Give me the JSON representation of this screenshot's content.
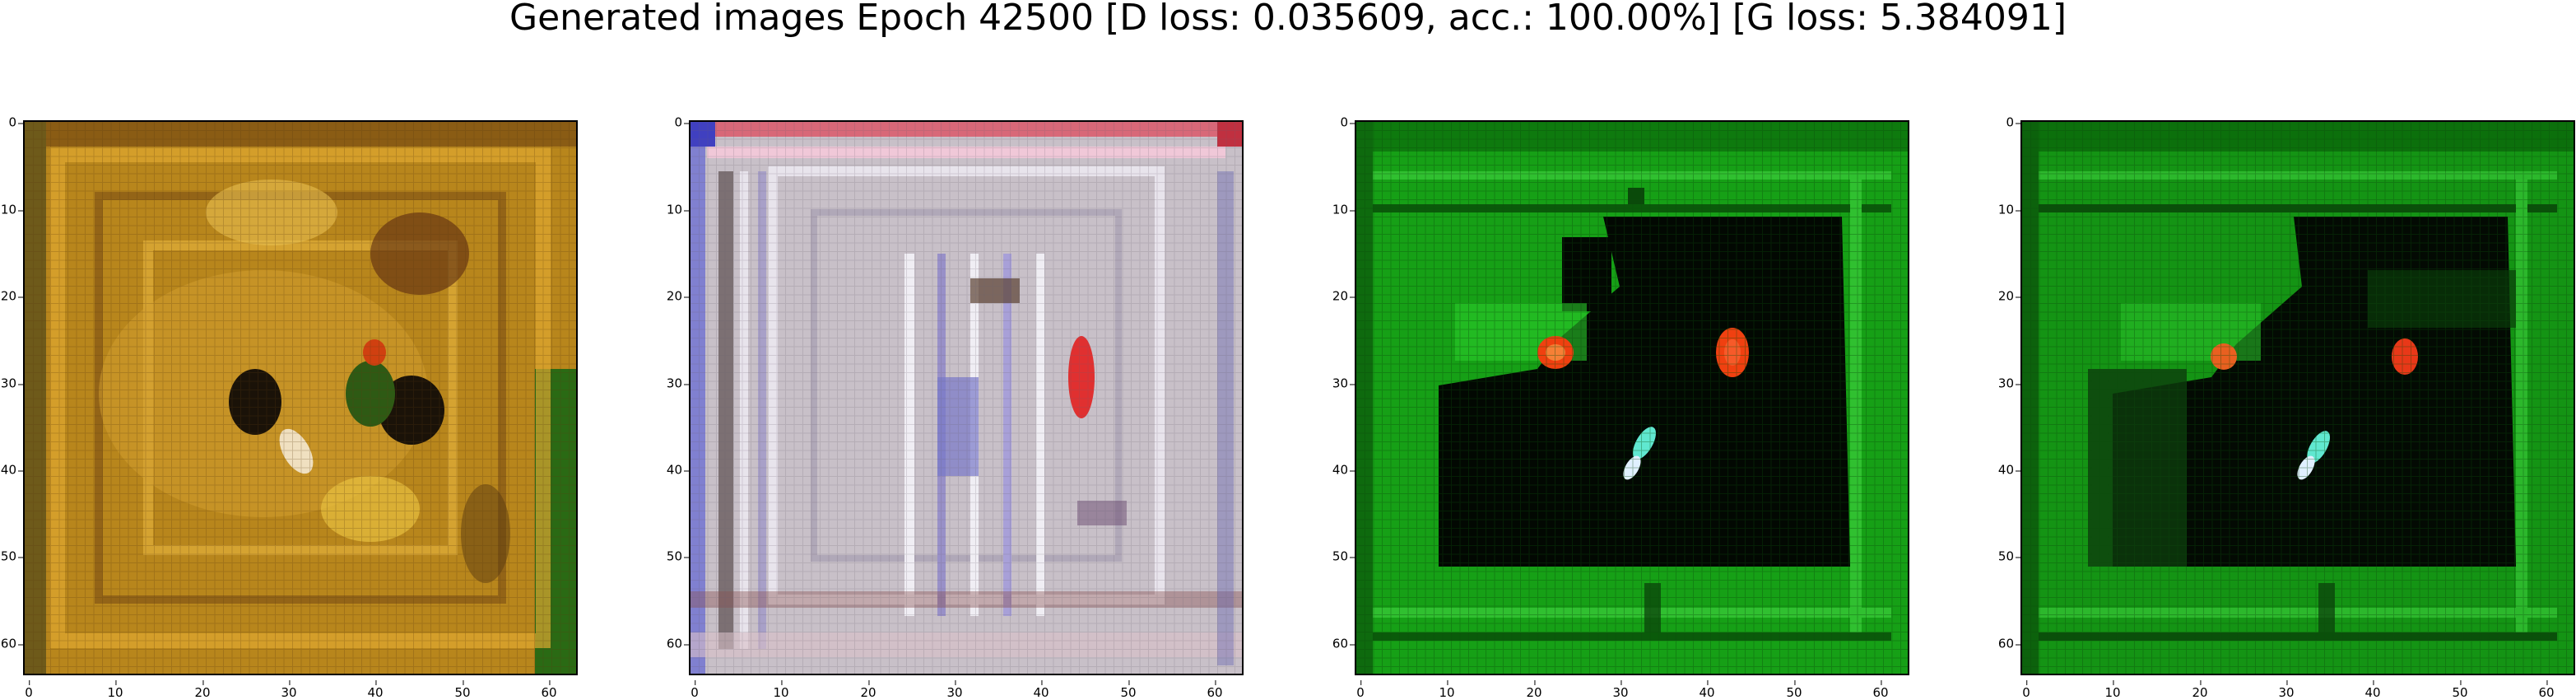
{
  "title": "Generated images Epoch 42500 [D loss: 0.035609, acc.: 100.00%] [G loss: 5.384091]",
  "axes": {
    "ticks": [
      "0",
      "10",
      "20",
      "30",
      "40",
      "50",
      "60"
    ],
    "tick_values": [
      0,
      10,
      20,
      30,
      40,
      50,
      60
    ],
    "range": [
      -0.5,
      63.5
    ]
  },
  "images": [
    {
      "id": "sample-1",
      "palette": {
        "base": "#b8861c",
        "light": "#e0a830",
        "dark": "#5a3a10",
        "accent": "#2a6a14",
        "highlight": "#f0e0c0",
        "spot": "#d04010"
      }
    },
    {
      "id": "sample-2",
      "palette": {
        "base": "#c8c0c8",
        "light": "#e8e4ec",
        "dark": "#4a3a3a",
        "accent": "#8888d8",
        "highlight": "#f4d8d8",
        "spot": "#e03030"
      }
    },
    {
      "id": "sample-3",
      "palette": {
        "base": "#16a016",
        "light": "#30c030",
        "dark": "#020802",
        "accent": "#0a5a0a",
        "highlight": "#60e8d0",
        "spot": "#f04010"
      }
    },
    {
      "id": "sample-4",
      "palette": {
        "base": "#149414",
        "light": "#2cb82c",
        "dark": "#030a03",
        "accent": "#0a500a",
        "highlight": "#60e8d0",
        "spot": "#e83818"
      }
    }
  ]
}
